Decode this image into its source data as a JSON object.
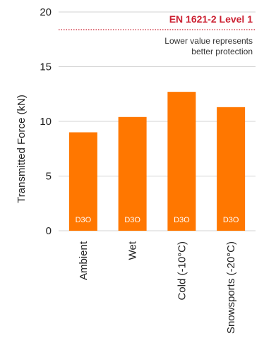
{
  "chart_data": {
    "type": "bar",
    "categories": [
      "Ambient",
      "Wet",
      "Cold (-10°C)",
      "Snowsports (-20°C)"
    ],
    "values": [
      9.0,
      10.4,
      12.7,
      11.3
    ],
    "bar_labels": [
      "D3O",
      "D3O",
      "D3O",
      "D3O"
    ],
    "ylabel": "Transmitted Force (kN)",
    "ylim": [
      0,
      20
    ],
    "yticks": [
      0,
      5,
      10,
      15,
      20
    ],
    "grid": "horizontal",
    "reference_line": {
      "value": 18.5,
      "label": "EN 1621-2 Level 1",
      "note_lines": [
        "Lower value represents",
        "better protection"
      ]
    }
  },
  "colors": {
    "bar": "#ff7700",
    "grid": "#d3d3d3",
    "reference": "#cc2233",
    "axis": "#222222"
  }
}
